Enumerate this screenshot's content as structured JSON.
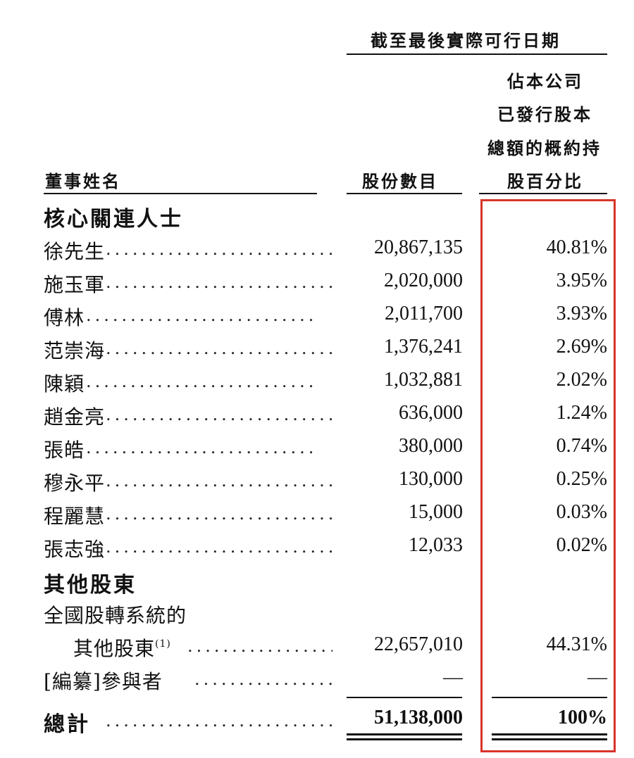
{
  "header": {
    "period": "截至最後實際可行日期",
    "col_name": "董事姓名",
    "col_shares": "股份數目",
    "col_pct_lines": [
      "佔本公司",
      "已發行股本",
      "總額的概約持",
      "股百分比"
    ]
  },
  "sections": {
    "core": "核心關連人士",
    "others": "其他股東"
  },
  "rows": [
    {
      "name": "徐先生",
      "shares": "20,867,135",
      "pct": "40.81%"
    },
    {
      "name": "施玉軍",
      "shares": "2,020,000",
      "pct": "3.95%"
    },
    {
      "name": "傅林",
      "shares": "2,011,700",
      "pct": "3.93%"
    },
    {
      "name": "范崇海",
      "shares": "1,376,241",
      "pct": "2.69%"
    },
    {
      "name": "陳穎",
      "shares": "1,032,881",
      "pct": "2.02%"
    },
    {
      "name": "趙金亮",
      "shares": "636,000",
      "pct": "1.24%"
    },
    {
      "name": "張皓",
      "shares": "380,000",
      "pct": "0.74%"
    },
    {
      "name": "穆永平",
      "shares": "130,000",
      "pct": "0.25%"
    },
    {
      "name": "程麗慧",
      "shares": "15,000",
      "pct": "0.03%"
    },
    {
      "name": "張志強",
      "shares": "12,033",
      "pct": "0.02%"
    }
  ],
  "other_rows": {
    "neeq_line1": "全國股轉系統的",
    "neeq_line2": "其他股東",
    "neeq_note": "(1)",
    "neeq_shares": "22,657,010",
    "neeq_pct": "44.31%",
    "redacted_name": "[編纂]參與者",
    "redacted_shares": "—",
    "redacted_pct": "—"
  },
  "total": {
    "label": "總計",
    "shares": "51,138,000",
    "pct": "100%"
  },
  "dots": "..........................",
  "colors": {
    "highlight_box": "#d8342a",
    "text": "#111111"
  }
}
